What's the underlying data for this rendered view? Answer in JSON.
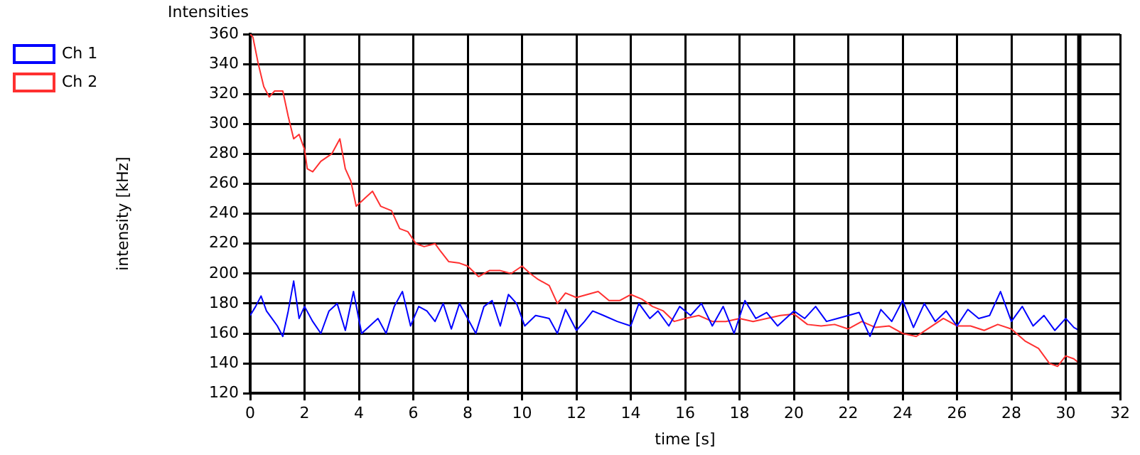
{
  "chart_data": {
    "type": "line",
    "title": "Intensities",
    "xlabel": "time [s]",
    "ylabel": "intensity [kHz]",
    "xlim": [
      0,
      32
    ],
    "xticks": [
      0,
      2,
      4,
      6,
      8,
      10,
      12,
      14,
      16,
      18,
      20,
      22,
      24,
      26,
      28,
      30,
      32
    ],
    "ylim": [
      120,
      360
    ],
    "yticks": [
      120,
      140,
      160,
      180,
      200,
      220,
      240,
      260,
      280,
      300,
      320,
      340,
      360
    ],
    "grid": true,
    "legend": "top left",
    "marker": "none",
    "line_style": "solid",
    "ref_lines": [
      {
        "axis": "x",
        "value": 30.5,
        "color": "#000000"
      }
    ],
    "series": [
      {
        "name": "Ch 1",
        "color": "#0000ff",
        "x": [
          0,
          0.2,
          0.4,
          0.6,
          0.8,
          1.0,
          1.2,
          1.4,
          1.6,
          1.8,
          2.0,
          2.3,
          2.6,
          2.9,
          3.2,
          3.5,
          3.8,
          4.1,
          4.4,
          4.7,
          5.0,
          5.3,
          5.6,
          5.9,
          6.2,
          6.5,
          6.8,
          7.1,
          7.4,
          7.7,
          8.0,
          8.3,
          8.6,
          8.9,
          9.2,
          9.5,
          9.8,
          10.1,
          10.5,
          11.0,
          11.3,
          11.6,
          12.0,
          12.3,
          12.6,
          13.0,
          13.5,
          14.0,
          14.3,
          14.7,
          15.0,
          15.4,
          15.8,
          16.2,
          16.6,
          17.0,
          17.4,
          17.8,
          18.2,
          18.6,
          19.0,
          19.4,
          20.0,
          20.4,
          20.8,
          21.2,
          21.6,
          22.0,
          22.4,
          22.8,
          23.2,
          23.6,
          24.0,
          24.4,
          24.8,
          25.2,
          25.6,
          26.0,
          26.4,
          26.8,
          27.2,
          27.6,
          28.0,
          28.4,
          28.8,
          29.2,
          29.6,
          30.0,
          30.3,
          30.5
        ],
        "values": [
          172,
          178,
          185,
          175,
          170,
          165,
          158,
          175,
          195,
          170,
          178,
          168,
          160,
          175,
          180,
          162,
          188,
          160,
          165,
          170,
          160,
          178,
          188,
          165,
          178,
          175,
          168,
          180,
          163,
          180,
          170,
          160,
          178,
          182,
          165,
          186,
          180,
          165,
          172,
          170,
          160,
          176,
          162,
          168,
          175,
          172,
          168,
          165,
          180,
          170,
          175,
          165,
          178,
          172,
          180,
          165,
          178,
          160,
          182,
          170,
          174,
          165,
          175,
          170,
          178,
          168,
          170,
          172,
          174,
          158,
          176,
          168,
          182,
          164,
          180,
          168,
          175,
          165,
          176,
          170,
          172,
          188,
          168,
          178,
          165,
          172,
          162,
          170,
          164,
          162
        ]
      },
      {
        "name": "Ch 2",
        "color": "#ff3030",
        "x": [
          0,
          0.1,
          0.3,
          0.5,
          0.7,
          0.9,
          1.2,
          1.4,
          1.6,
          1.8,
          2.0,
          2.1,
          2.3,
          2.6,
          3.0,
          3.3,
          3.5,
          3.7,
          3.9,
          4.2,
          4.5,
          4.8,
          5.2,
          5.5,
          5.8,
          6.1,
          6.4,
          6.8,
          7.0,
          7.3,
          7.7,
          8.0,
          8.4,
          8.8,
          9.2,
          9.6,
          10.0,
          10.3,
          10.6,
          11.0,
          11.3,
          11.6,
          12.0,
          12.4,
          12.8,
          13.2,
          13.6,
          14.0,
          14.4,
          14.8,
          15.2,
          15.6,
          16.0,
          16.5,
          17.0,
          17.5,
          18.0,
          18.5,
          19.0,
          19.5,
          20.0,
          20.5,
          21.0,
          21.5,
          22.0,
          22.5,
          23.0,
          23.5,
          24.0,
          24.5,
          25.0,
          25.5,
          26.0,
          26.5,
          27.0,
          27.5,
          28.0,
          28.5,
          29.0,
          29.4,
          29.7,
          30.0,
          30.3,
          30.5
        ],
        "values": [
          360,
          358,
          340,
          325,
          318,
          322,
          322,
          305,
          290,
          293,
          283,
          270,
          268,
          275,
          280,
          290,
          270,
          262,
          245,
          250,
          255,
          245,
          242,
          230,
          228,
          220,
          218,
          220,
          215,
          208,
          207,
          205,
          198,
          202,
          202,
          200,
          205,
          200,
          196,
          192,
          180,
          187,
          184,
          186,
          188,
          182,
          182,
          186,
          183,
          178,
          175,
          168,
          170,
          172,
          168,
          168,
          170,
          168,
          170,
          172,
          173,
          166,
          165,
          166,
          163,
          168,
          164,
          165,
          160,
          158,
          164,
          170,
          165,
          165,
          162,
          166,
          163,
          155,
          150,
          140,
          138,
          145,
          143,
          140
        ]
      }
    ]
  }
}
